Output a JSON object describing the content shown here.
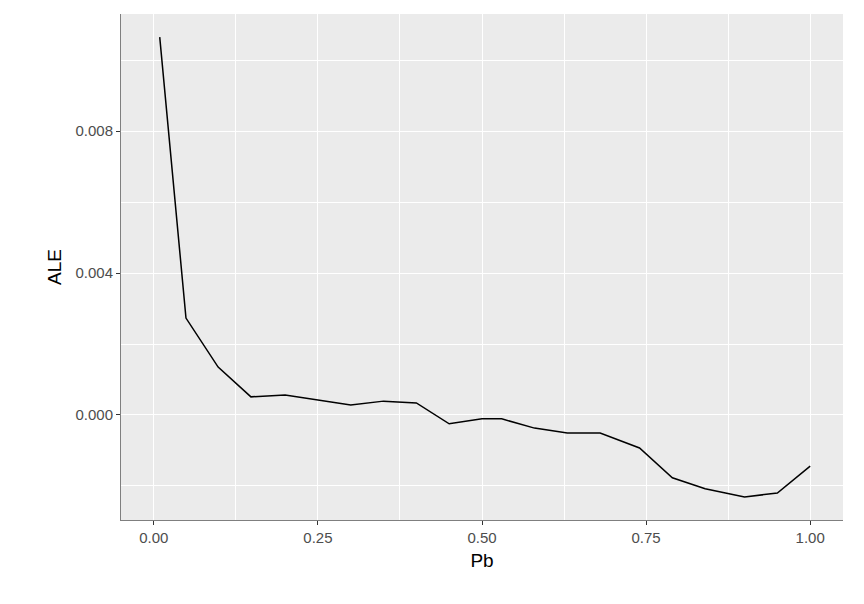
{
  "chart_data": {
    "type": "line",
    "x_label": "Pb",
    "y_label": "ALE",
    "x": [
      0.009,
      0.049,
      0.098,
      0.148,
      0.2,
      0.25,
      0.3,
      0.35,
      0.4,
      0.45,
      0.5,
      0.53,
      0.58,
      0.63,
      0.68,
      0.74,
      0.79,
      0.84,
      0.9,
      0.95,
      1.0
    ],
    "values": [
      0.01065,
      0.00273,
      0.00135,
      0.00051,
      0.00056,
      0.00042,
      0.00028,
      0.00039,
      0.00034,
      -0.00025,
      -0.00011,
      -0.00011,
      -0.00037,
      -0.00051,
      -0.00051,
      -0.00093,
      -0.00177,
      -0.00208,
      -0.00231,
      -0.0022,
      -0.00144
    ],
    "color": "#000000",
    "xlim": [
      -0.05,
      1.05
    ],
    "ylim": [
      -0.00296,
      0.0113
    ],
    "xticks": [
      {
        "value": 0,
        "label": "0.00"
      },
      {
        "value": 0.25,
        "label": "0.25"
      },
      {
        "value": 0.5,
        "label": "0.50"
      },
      {
        "value": 0.75,
        "label": "0.75"
      },
      {
        "value": 1,
        "label": "1.00"
      }
    ],
    "yticks": [
      {
        "value": 0,
        "label": "0.000"
      },
      {
        "value": 0.004,
        "label": "0.004"
      },
      {
        "value": 0.008,
        "label": "0.008"
      }
    ],
    "grid": true
  }
}
